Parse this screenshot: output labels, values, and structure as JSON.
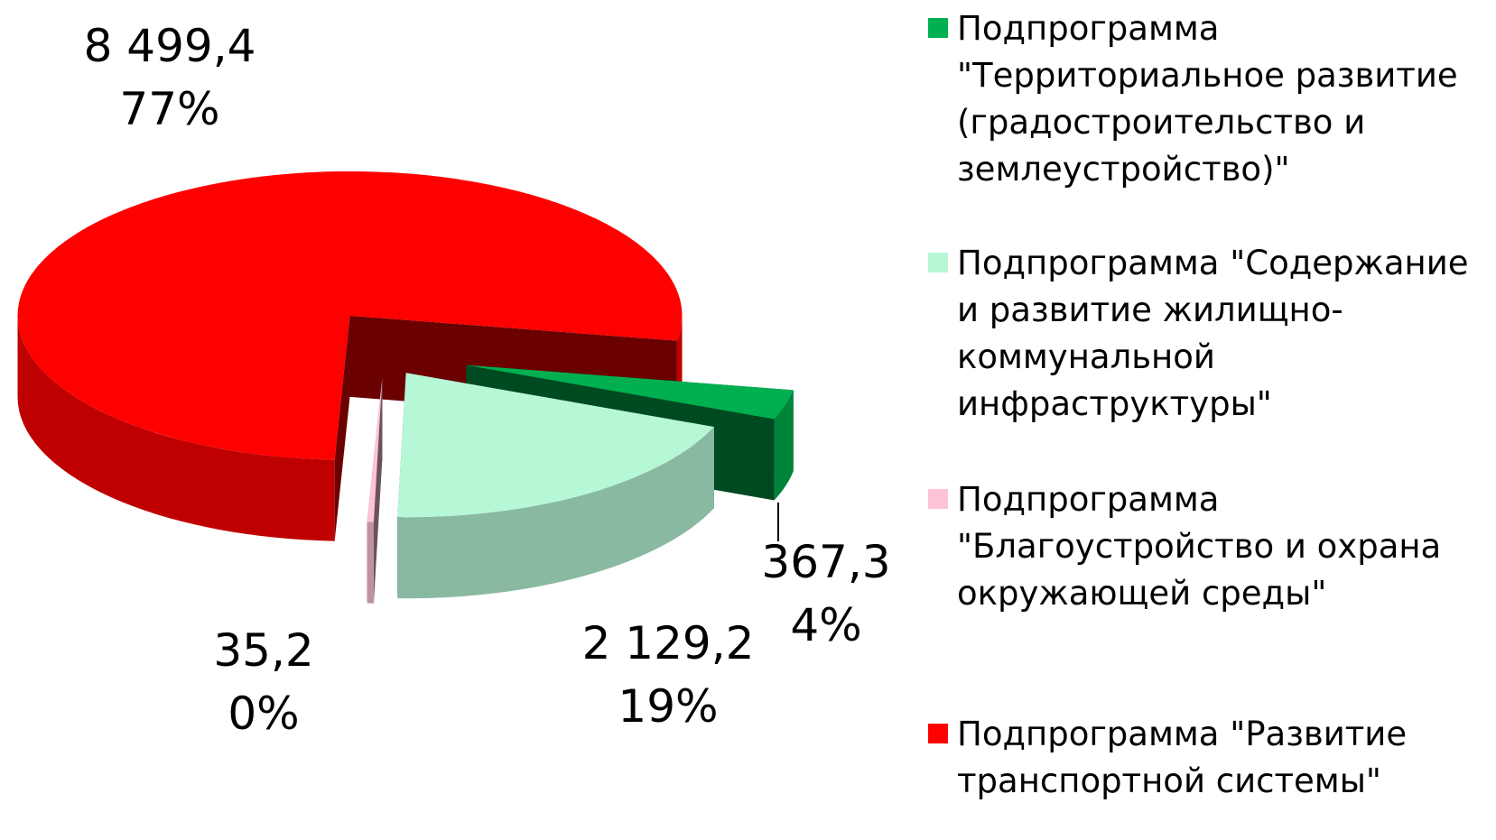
{
  "chart_data": {
    "type": "pie",
    "categories": [
      "Подпрограмма \"Территориальное развитие (градостроительство и землеустройство)\"",
      "Подпрограмма \"Содержание и развитие жилищно-коммунальной инфраструктуры\"",
      "Подпрограмма \"Благоустройство и охрана окружающей среды\"",
      "Подпрограмма \"Развитие транспортной системы\""
    ],
    "values": [
      367.3,
      2129.2,
      35.2,
      8499.4
    ],
    "value_labels": [
      "367,3",
      "2 129,2",
      "35,2",
      "8 499,4"
    ],
    "percentages": [
      4,
      19,
      0,
      77
    ],
    "percentage_labels": [
      "4%",
      "19%",
      "0%",
      "77%"
    ],
    "colors": [
      "#00b050",
      "#b6f7d6",
      "#ffc3d8",
      "#ff0000"
    ],
    "legend": "right",
    "exploded": true,
    "three_d": true
  }
}
